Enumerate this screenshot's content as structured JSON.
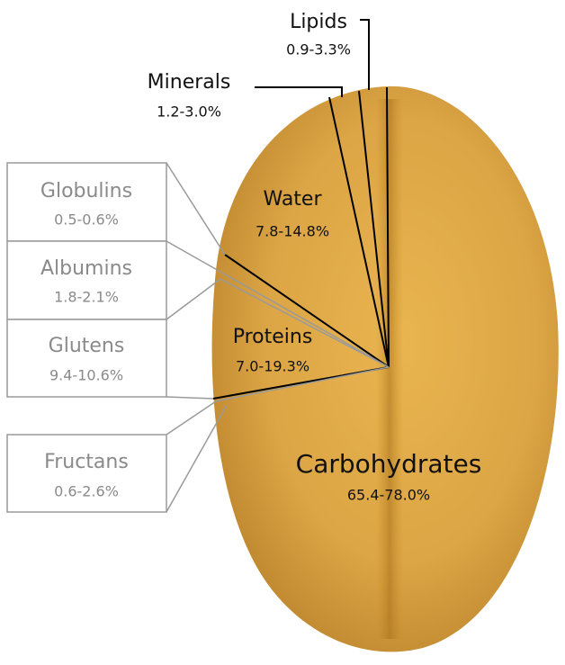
{
  "grain_components": [
    {
      "name": "Lipids",
      "range": "0.9-3.3%"
    },
    {
      "name": "Minerals",
      "range": "1.2-3.0%"
    },
    {
      "name": "Water",
      "range": "7.8-14.8%"
    },
    {
      "name": "Proteins",
      "range": "7.0-19.3%"
    },
    {
      "name": "Carbohydrates",
      "range": "65.4-78.0%"
    }
  ],
  "fraction_boxes": [
    {
      "name": "Globulins",
      "range": "0.5-0.6%"
    },
    {
      "name": "Albumins",
      "range": "1.8-2.1%"
    },
    {
      "name": "Glutens",
      "range": "9.4-10.6%"
    },
    {
      "name": "Fructans",
      "range": "0.6-2.6%"
    }
  ]
}
